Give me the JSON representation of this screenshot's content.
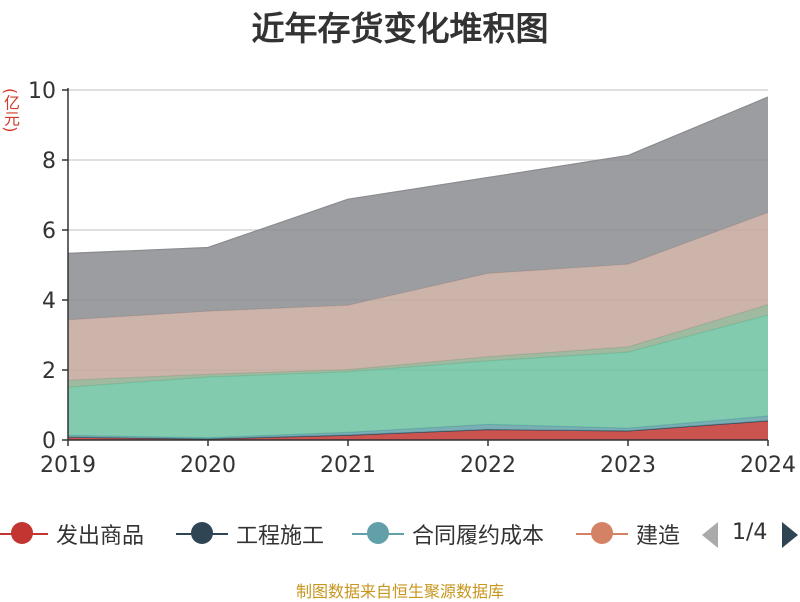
{
  "chart_data": {
    "type": "area",
    "stacked": true,
    "title": "近年存货变化堆积图",
    "unit_label": "(亿元)",
    "x": [
      "2019",
      "2020",
      "2021",
      "2022",
      "2023",
      "2024"
    ],
    "ylim": [
      0,
      10
    ],
    "yticks": [
      "0",
      "2",
      "4",
      "6",
      "8",
      "10"
    ],
    "grid": true,
    "legend_position": "bottom",
    "series": [
      {
        "name": "发出商品",
        "color": "#c23531",
        "values": [
          0.08,
          0.03,
          0.14,
          0.3,
          0.26,
          0.55
        ]
      },
      {
        "name": "工程施工",
        "color": "#2f4554",
        "values": [
          0.0,
          0.0,
          0.0,
          0.0,
          0.0,
          0.0
        ]
      },
      {
        "name": "合同履约成本",
        "color": "#61a0a8",
        "values": [
          0.05,
          0.04,
          0.08,
          0.15,
          0.08,
          0.14
        ]
      },
      {
        "name": "",
        "color": "#6dc2a0",
        "values": [
          1.38,
          1.73,
          1.73,
          1.81,
          2.17,
          2.88
        ]
      },
      {
        "name": "",
        "color": "#8fae90",
        "values": [
          0.2,
          0.08,
          0.06,
          0.12,
          0.15,
          0.3
        ]
      },
      {
        "name": "",
        "color": "#c4a79c",
        "values": [
          1.72,
          1.8,
          1.84,
          2.38,
          2.36,
          2.63
        ]
      },
      {
        "name": "",
        "color": "#8a8c90",
        "values": [
          1.9,
          1.82,
          3.03,
          2.74,
          3.11,
          3.3
        ]
      }
    ],
    "legend_visible": [
      {
        "label": "发出商品",
        "color": "#c23531"
      },
      {
        "label": "工程施工",
        "color": "#2f4554"
      },
      {
        "label": "合同履约成本",
        "color": "#61a0a8"
      },
      {
        "label": "建造",
        "color": "#d48265"
      }
    ]
  },
  "legend_pager": {
    "text": "1/4",
    "prev_color": "#aaaaaa",
    "next_color": "#2f4554"
  },
  "footer": {
    "source": "制图数据来自恒生聚源数据库"
  }
}
